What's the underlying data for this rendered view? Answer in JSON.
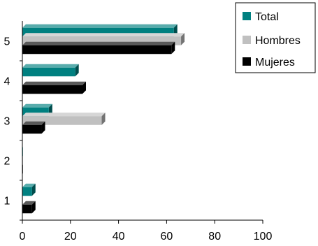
{
  "chart_data": {
    "type": "bar",
    "orientation": "horizontal",
    "style": "3d",
    "title": "",
    "xlabel": "",
    "ylabel": "",
    "categories": [
      "1",
      "2",
      "3",
      "4",
      "5"
    ],
    "series": [
      {
        "name": "Total",
        "values": [
          4,
          0,
          11,
          22,
          63
        ],
        "color": "#008080"
      },
      {
        "name": "Hombres",
        "values": [
          0,
          0,
          33,
          0,
          66
        ],
        "color": "#c0c0c0"
      },
      {
        "name": "Mujeres",
        "values": [
          4,
          0,
          8,
          25,
          62
        ],
        "color": "#000000"
      }
    ],
    "xlim": [
      0,
      100
    ],
    "xticks": [
      "0",
      "20",
      "40",
      "60",
      "80",
      "100"
    ],
    "grid": false,
    "legend_position": "top-right"
  }
}
